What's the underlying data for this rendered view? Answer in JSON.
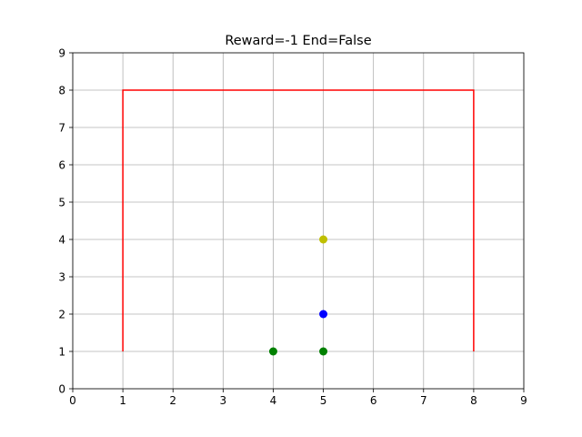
{
  "chart_data": {
    "type": "line",
    "title": "Reward=-1 End=False",
    "xlabel": "",
    "ylabel": "",
    "xlim": [
      0,
      9
    ],
    "ylim": [
      0,
      9
    ],
    "xticks": [
      "0",
      "1",
      "2",
      "3",
      "4",
      "5",
      "6",
      "7",
      "8",
      "9"
    ],
    "yticks": [
      "0",
      "1",
      "2",
      "3",
      "4",
      "5",
      "6",
      "7",
      "8",
      "9"
    ],
    "grid": true,
    "colors": {
      "boundary": "#ff0000",
      "yellow": "#bfbf00",
      "blue": "#0000ff",
      "green": "#008000",
      "grid": "#b0b0b0"
    },
    "series": [
      {
        "type": "line",
        "color": "#ff0000",
        "x": [
          1,
          1,
          8,
          8
        ],
        "y": [
          1,
          8,
          8,
          1
        ]
      },
      {
        "type": "scatter",
        "color": "#bfbf00",
        "x": [
          5
        ],
        "y": [
          4
        ]
      },
      {
        "type": "scatter",
        "color": "#0000ff",
        "x": [
          5
        ],
        "y": [
          2
        ]
      },
      {
        "type": "scatter",
        "color": "#008000",
        "x": [
          4,
          5
        ],
        "y": [
          1,
          1
        ]
      }
    ]
  }
}
